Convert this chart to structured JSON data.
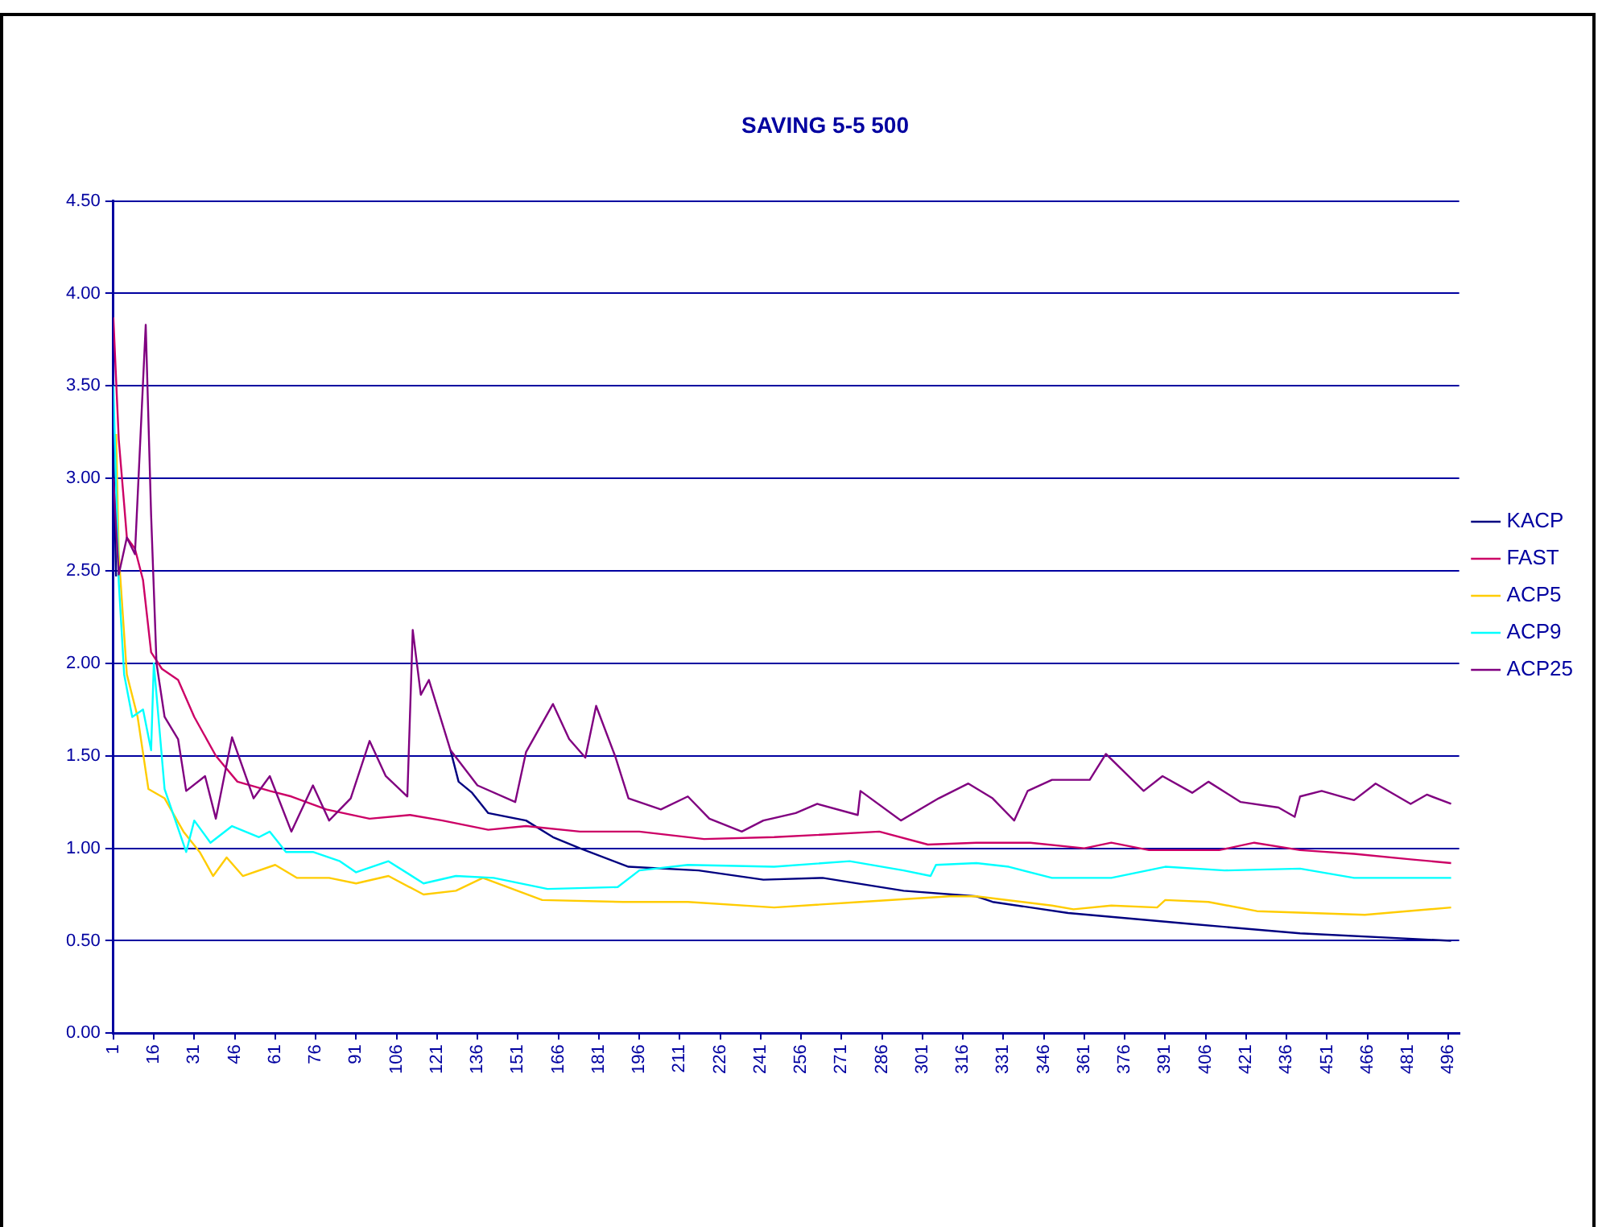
{
  "chart_data": {
    "type": "line",
    "title": "SAVING 5-5 500",
    "xlim": [
      1,
      500
    ],
    "xticks": [
      1,
      16,
      31,
      46,
      61,
      76,
      91,
      106,
      121,
      136,
      151,
      166,
      181,
      196,
      211,
      226,
      241,
      256,
      271,
      286,
      301,
      316,
      331,
      346,
      361,
      376,
      391,
      406,
      421,
      436,
      451,
      466,
      481,
      496
    ],
    "ylim": [
      0,
      4.5
    ],
    "yticks": [
      {
        "value": 0,
        "label": "0.00"
      },
      {
        "value": 0.5,
        "label": "0.50"
      },
      {
        "value": 1,
        "label": "1.00"
      },
      {
        "value": 1.5,
        "label": "1.50"
      },
      {
        "value": 2,
        "label": "2.00"
      },
      {
        "value": 2.5,
        "label": "2.50"
      },
      {
        "value": 3,
        "label": "3.00"
      },
      {
        "value": 3.5,
        "label": "3.50"
      },
      {
        "value": 4,
        "label": "4.00"
      },
      {
        "value": 4.5,
        "label": "4.50"
      }
    ],
    "grid": "y",
    "legend": "right",
    "marker": "none",
    "line_style": "solid",
    "series": [
      {
        "name": "KACP",
        "color": "#000080",
        "x": [
          1,
          2,
          3,
          126,
          129,
          134,
          140,
          154,
          164,
          174,
          192,
          218,
          242,
          264,
          294,
          321,
          327,
          355,
          401,
          441,
          497
        ],
        "values": [
          3.18,
          2.47,
          null,
          1.53,
          1.36,
          1.3,
          1.19,
          1.15,
          1.06,
          1.0,
          0.9,
          0.88,
          0.83,
          0.84,
          0.77,
          0.74,
          0.71,
          0.65,
          0.59,
          0.54,
          0.5
        ]
      },
      {
        "name": "FAST",
        "color": "#cc0066",
        "x": [
          1,
          3,
          5,
          6,
          9,
          12,
          15,
          19,
          25,
          31,
          39,
          47,
          59,
          67,
          80,
          96,
          111,
          123,
          140,
          154,
          174,
          196,
          220,
          246,
          285,
          303,
          321,
          341,
          361,
          371,
          385,
          411,
          424,
          441,
          461,
          482,
          497
        ],
        "values": [
          3.87,
          3.21,
          2.86,
          2.68,
          2.62,
          2.45,
          2.06,
          1.97,
          1.91,
          1.71,
          1.5,
          1.36,
          1.31,
          1.28,
          1.21,
          1.16,
          1.18,
          1.15,
          1.1,
          1.12,
          1.09,
          1.09,
          1.05,
          1.06,
          1.09,
          1.02,
          1.03,
          1.03,
          1.0,
          1.03,
          0.99,
          0.99,
          1.03,
          0.99,
          0.97,
          0.94,
          0.92
        ]
      },
      {
        "name": "ACP5",
        "color": "#ffcc00",
        "x": [
          2,
          3,
          6,
          10,
          14,
          20,
          27,
          33,
          38,
          43,
          49,
          61,
          69,
          81,
          91,
          103,
          116,
          128,
          138,
          160,
          190,
          214,
          246,
          278,
          311,
          321,
          349,
          357,
          371,
          388,
          391,
          407,
          425,
          465,
          497
        ],
        "values": [
          3.24,
          2.59,
          1.94,
          1.71,
          1.32,
          1.27,
          1.09,
          0.98,
          0.85,
          0.95,
          0.85,
          0.91,
          0.84,
          0.84,
          0.81,
          0.85,
          0.75,
          0.77,
          0.84,
          0.72,
          0.71,
          0.71,
          0.68,
          0.71,
          0.74,
          0.74,
          0.69,
          0.67,
          0.69,
          0.68,
          0.72,
          0.71,
          0.66,
          0.64,
          0.68
        ]
      },
      {
        "name": "ACP9",
        "color": "#00ffff",
        "x": [
          1,
          3,
          5,
          8,
          12,
          15,
          16,
          20,
          28,
          31,
          37,
          45,
          55,
          59,
          65,
          75,
          85,
          91,
          103,
          116,
          128,
          142,
          162,
          188,
          196,
          214,
          246,
          274,
          294,
          304,
          306,
          321,
          333,
          349,
          371,
          391,
          413,
          441,
          461,
          497
        ],
        "values": [
          3.5,
          2.44,
          1.94,
          1.71,
          1.75,
          1.53,
          2.0,
          1.32,
          0.98,
          1.15,
          1.03,
          1.12,
          1.06,
          1.09,
          0.98,
          0.98,
          0.93,
          0.87,
          0.93,
          0.81,
          0.85,
          0.84,
          0.78,
          0.79,
          0.88,
          0.91,
          0.9,
          0.93,
          0.88,
          0.85,
          0.91,
          0.92,
          0.9,
          0.84,
          0.84,
          0.9,
          0.88,
          0.89,
          0.84,
          0.84
        ]
      },
      {
        "name": "ACP25",
        "color": "#800080",
        "x": [
          1,
          3,
          6,
          9,
          13,
          15,
          17,
          20,
          25,
          28,
          35,
          39,
          45,
          53,
          59,
          67,
          75,
          81,
          89,
          96,
          102,
          110,
          112,
          115,
          118,
          126,
          136,
          150,
          154,
          164,
          170,
          176,
          180,
          187,
          192,
          204,
          214,
          222,
          234,
          242,
          254,
          262,
          277,
          278,
          293,
          307,
          318,
          327,
          335,
          340,
          349,
          363,
          369,
          383,
          390,
          401,
          407,
          419,
          433,
          439,
          441,
          449,
          461,
          469,
          482,
          488,
          497
        ],
        "values": [
          3.0,
          2.48,
          2.68,
          2.59,
          3.83,
          2.8,
          2.0,
          1.71,
          1.59,
          1.31,
          1.39,
          1.16,
          1.6,
          1.27,
          1.39,
          1.09,
          1.34,
          1.15,
          1.27,
          1.58,
          1.39,
          1.28,
          2.18,
          1.83,
          1.91,
          1.53,
          1.34,
          1.25,
          1.52,
          1.78,
          1.59,
          1.49,
          1.77,
          1.5,
          1.27,
          1.21,
          1.28,
          1.16,
          1.09,
          1.15,
          1.19,
          1.24,
          1.18,
          1.31,
          1.15,
          1.27,
          1.35,
          1.27,
          1.15,
          1.31,
          1.37,
          1.37,
          1.51,
          1.31,
          1.39,
          1.3,
          1.36,
          1.25,
          1.22,
          1.17,
          1.28,
          1.31,
          1.26,
          1.35,
          1.24,
          1.29,
          1.24
        ]
      }
    ]
  }
}
